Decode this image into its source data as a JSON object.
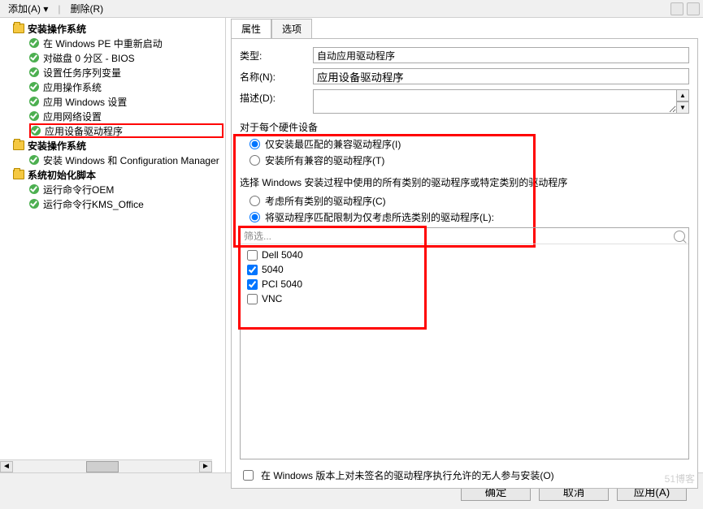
{
  "toolbar": {
    "add": "添加(A)",
    "remove": "删除(R)"
  },
  "tree": {
    "g1_title": "安装操作系统",
    "g1_items": [
      "在 Windows PE 中重新启动",
      "对磁盘 0 分区 - BIOS",
      "设置任务序列变量",
      "应用操作系统",
      "应用 Windows 设置",
      "应用网络设置",
      "应用设备驱动程序"
    ],
    "g2_title": "安装操作系统",
    "g2_items": [
      "安装 Windows 和 Configuration Manager"
    ],
    "g3_title": "系统初始化脚本",
    "g3_items": [
      "运行命令行OEM",
      "运行命令行KMS_Office"
    ]
  },
  "tabs": {
    "attr": "属性",
    "opt": "选项"
  },
  "form": {
    "type_label": "类型:",
    "type_value": "自动应用驱动程序",
    "name_label": "名称(N):",
    "name_value": "应用设备驱动程序",
    "desc_label": "描述(D):"
  },
  "hardware": {
    "group": "对于每个硬件设备",
    "r1": "仅安装最匹配的兼容驱动程序(I)",
    "r2": "安装所有兼容的驱动程序(T)",
    "help": "选择 Windows 安装过程中使用的所有类别的驱动程序或特定类别的驱动程序",
    "r3": "考虑所有类别的驱动程序(C)",
    "r4": "将驱动程序匹配限制为仅考虑所选类别的驱动程序(L):"
  },
  "filter": {
    "placeholder": "筛选...",
    "items": [
      {
        "label": "Dell 5040",
        "checked": false
      },
      {
        "label": "5040",
        "checked": true
      },
      {
        "label": "PCI 5040",
        "checked": true
      },
      {
        "label": "VNC",
        "checked": false
      }
    ]
  },
  "unsigned": "在 Windows 版本上对未签名的驱动程序执行允许的无人参与安装(O)",
  "buttons": {
    "ok": "确定",
    "cancel": "取消",
    "apply": "应用(A)"
  },
  "watermark": "51博客",
  "colors": {
    "highlight": "#ff0000",
    "check_green": "#4caf50",
    "folder": "#f5c842"
  }
}
